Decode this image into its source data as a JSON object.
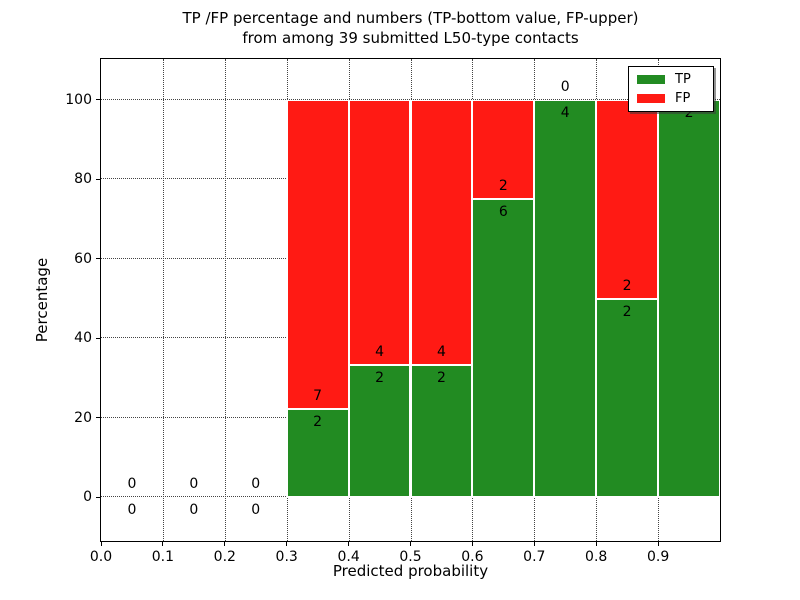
{
  "title": {
    "line1": "TP /FP percentage and numbers (TP-bottom value, FP-upper)",
    "line2": "from among 39 submitted L50-type contacts"
  },
  "axes": {
    "xlabel": "Predicted probability",
    "ylabel": "Percentage",
    "ytick_labels": [
      "0",
      "20",
      "40",
      "60",
      "80",
      "100"
    ],
    "ytick_values": [
      0,
      20,
      40,
      60,
      80,
      100
    ],
    "xtick_labels": [
      "0.0",
      "0.1",
      "0.2",
      "0.3",
      "0.4",
      "0.5",
      "0.6",
      "0.7",
      "0.8",
      "0.9"
    ],
    "xtick_values": [
      0.0,
      0.1,
      0.2,
      0.3,
      0.4,
      0.5,
      0.6,
      0.7,
      0.8,
      0.9
    ]
  },
  "colors": {
    "tp": "#228b22",
    "fp": "#ff1a14",
    "bar_edge": "#ffffff"
  },
  "legend": {
    "items": [
      {
        "label": "TP",
        "color": "#228b22"
      },
      {
        "label": "FP",
        "color": "#ff1a14"
      }
    ]
  },
  "chart_data": {
    "type": "bar",
    "stacked": true,
    "title": "TP /FP percentage and numbers (TP-bottom value, FP-upper) from among 39 submitted L50-type contacts",
    "xlabel": "Predicted probability",
    "ylabel": "Percentage",
    "xlim": [
      0,
      1
    ],
    "ylim": [
      -11,
      110.3
    ],
    "grid": "dotted",
    "legend_position": "upper right",
    "total_contacts": 39,
    "categories": [
      "0.0-0.1",
      "0.1-0.2",
      "0.2-0.3",
      "0.3-0.4",
      "0.4-0.5",
      "0.5-0.6",
      "0.6-0.7",
      "0.7-0.8",
      "0.8-0.9",
      "0.9-1.0"
    ],
    "series": [
      {
        "name": "TP",
        "counts": [
          0,
          0,
          0,
          2,
          2,
          2,
          6,
          4,
          2,
          2
        ]
      },
      {
        "name": "FP",
        "counts": [
          0,
          0,
          0,
          7,
          4,
          4,
          2,
          0,
          2,
          0
        ]
      }
    ],
    "bins": [
      {
        "x0": 0.0,
        "x1": 0.1,
        "tp_count": 0,
        "fp_count": 0,
        "tp_pct": 0,
        "fp_pct": 0
      },
      {
        "x0": 0.1,
        "x1": 0.2,
        "tp_count": 0,
        "fp_count": 0,
        "tp_pct": 0,
        "fp_pct": 0
      },
      {
        "x0": 0.2,
        "x1": 0.3,
        "tp_count": 0,
        "fp_count": 0,
        "tp_pct": 0,
        "fp_pct": 0
      },
      {
        "x0": 0.3,
        "x1": 0.4,
        "tp_count": 2,
        "fp_count": 7,
        "tp_pct": 22.222,
        "fp_pct": 77.778
      },
      {
        "x0": 0.4,
        "x1": 0.5,
        "tp_count": 2,
        "fp_count": 4,
        "tp_pct": 33.333,
        "fp_pct": 66.667
      },
      {
        "x0": 0.5,
        "x1": 0.6,
        "tp_count": 2,
        "fp_count": 4,
        "tp_pct": 33.333,
        "fp_pct": 66.667
      },
      {
        "x0": 0.6,
        "x1": 0.7,
        "tp_count": 6,
        "fp_count": 2,
        "tp_pct": 75,
        "fp_pct": 25
      },
      {
        "x0": 0.7,
        "x1": 0.8,
        "tp_count": 4,
        "fp_count": 0,
        "tp_pct": 100,
        "fp_pct": 0
      },
      {
        "x0": 0.8,
        "x1": 0.9,
        "tp_count": 2,
        "fp_count": 2,
        "tp_pct": 50,
        "fp_pct": 50
      },
      {
        "x0": 0.9,
        "x1": 1.0,
        "tp_count": 2,
        "fp_count": 0,
        "tp_pct": 100,
        "fp_pct": 0
      }
    ]
  }
}
